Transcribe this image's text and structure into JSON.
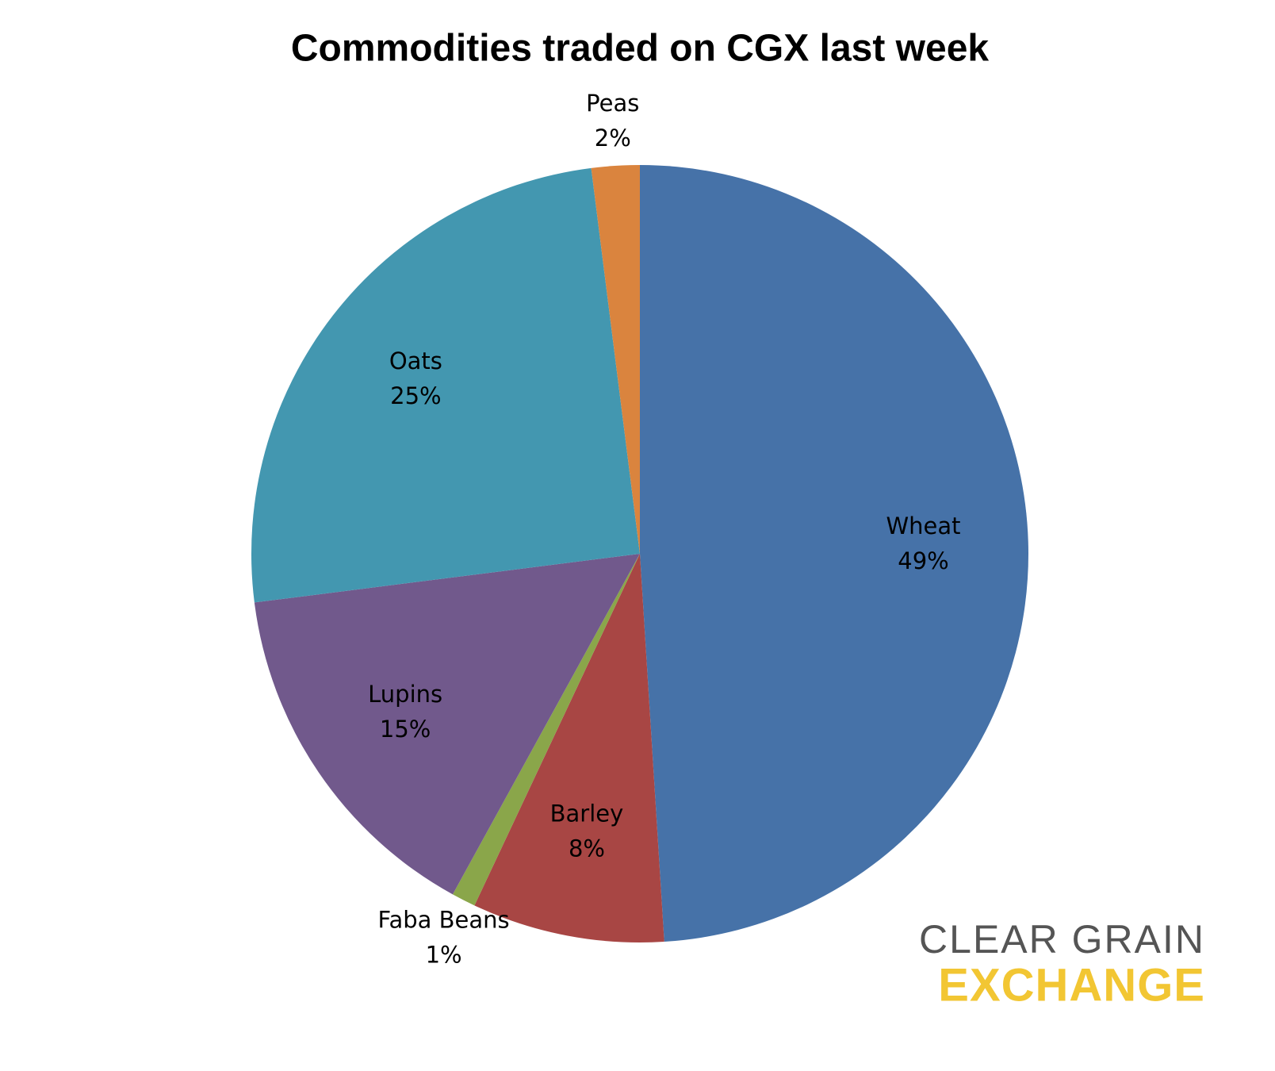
{
  "chart_data": {
    "type": "pie",
    "title": "Commodities traded on CGX last week",
    "categories": [
      "Wheat",
      "Barley",
      "Faba Beans",
      "Lupins",
      "Oats",
      "Peas"
    ],
    "values": [
      49,
      8,
      1,
      15,
      25,
      2
    ],
    "value_labels": [
      "49%",
      "8%",
      "1%",
      "15%",
      "25%",
      "2%"
    ],
    "colors": [
      "#4672a8",
      "#a84644",
      "#8aa64a",
      "#71598c",
      "#4397b0",
      "#da843e"
    ]
  },
  "logo": {
    "line1": "CLEAR GRAIN",
    "line2": "EXCHANGE"
  }
}
